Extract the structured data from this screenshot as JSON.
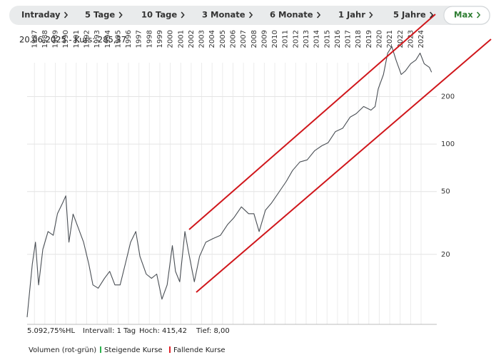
{
  "tabs": [
    "Intraday",
    "5 Tage",
    "10 Tage",
    "3 Monate",
    "6 Monate",
    "1 Jahr",
    "5 Jahre",
    "Max"
  ],
  "active_tab": 7,
  "header": {
    "quote": "20.06.2025  - Kurs: 285,37"
  },
  "chart_data": {
    "type": "line",
    "log_scale": "y",
    "grid": true,
    "x": [
      1986.3,
      1986.6,
      1986.8,
      1987.1,
      1987.4,
      1987.8,
      1988.3,
      1988.8,
      1989.2,
      1989.7,
      1990.0,
      1990.3,
      1990.7,
      1991.2,
      1991.7,
      1992.2,
      1992.6,
      1993.1,
      1993.7,
      1994.2,
      1994.7,
      1995.2,
      1995.7,
      1996.2,
      1996.7,
      1997.1,
      1997.7,
      1998.2,
      1998.7,
      1999.2,
      1999.7,
      2000.2,
      2000.5,
      2000.9,
      2001.4,
      2001.7,
      2002.3,
      2002.8,
      2003.4,
      2004.1,
      2004.8,
      2005.5,
      2006.1,
      2006.8,
      2007.5,
      2008.0,
      2008.5,
      2009.1,
      2009.7,
      2010.4,
      2011.1,
      2011.7,
      2012.4,
      2013.1,
      2013.8,
      2014.5,
      2015.1,
      2015.8,
      2016.5,
      2017.2,
      2017.8,
      2018.5,
      2019.2,
      2019.6,
      2019.9,
      2020.4,
      2020.8,
      2021.2,
      2021.6,
      2022.1,
      2022.5,
      2023.0,
      2023.5,
      2023.9,
      2024.3,
      2024.8,
      2025.0
    ],
    "series": [
      {
        "color": "#4a4f55",
        "values": [
          8.0,
          12.8,
          17.4,
          23.9,
          12.8,
          21.5,
          27.9,
          26.4,
          36.2,
          42.4,
          47,
          23.9,
          36,
          29.3,
          23.9,
          17.4,
          12.8,
          12.2,
          14.1,
          15.6,
          12.8,
          12.8,
          17.4,
          23.9,
          27.9,
          19.4,
          15,
          14.1,
          15,
          10.4,
          12.8,
          22.7,
          15.6,
          13.4,
          27.9,
          21.5,
          13.4,
          19.4,
          23.9,
          25.2,
          26.4,
          31,
          34.2,
          40,
          36.2,
          36.2,
          27.9,
          38.1,
          42.4,
          49.6,
          58,
          68,
          77,
          79.4,
          90.6,
          97.5,
          102,
          120,
          126,
          148,
          156,
          173,
          164,
          173,
          224,
          276,
          377,
          415,
          341,
          276,
          291,
          323,
          341,
          377,
          323,
          306,
          285.37
        ]
      }
    ],
    "xlim": [
      1986.3,
      2025.5
    ],
    "ylim": [
      7.2,
      540
    ],
    "xticks": [
      1987,
      1988,
      1989,
      1990,
      1991,
      1992,
      1993,
      1994,
      1995,
      1996,
      1997,
      1998,
      1999,
      2000,
      2001,
      2002,
      2003,
      2004,
      2005,
      2006,
      2007,
      2008,
      2009,
      2010,
      2011,
      2012,
      2013,
      2014,
      2015,
      2016,
      2017,
      2018,
      2019,
      2020,
      2021,
      2022,
      2023,
      2024
    ],
    "yticks": [
      20,
      50,
      100,
      200
    ]
  },
  "footer": {
    "hl": "5.092,75%HL",
    "interval": "Intervall: 1 Tag",
    "high": "Hoch: 415,42",
    "low": "Tief: 8,00",
    "volume": "Volumen (rot-grün)",
    "rising": "Steigende Kurse",
    "falling": "Fallende Kurse"
  }
}
